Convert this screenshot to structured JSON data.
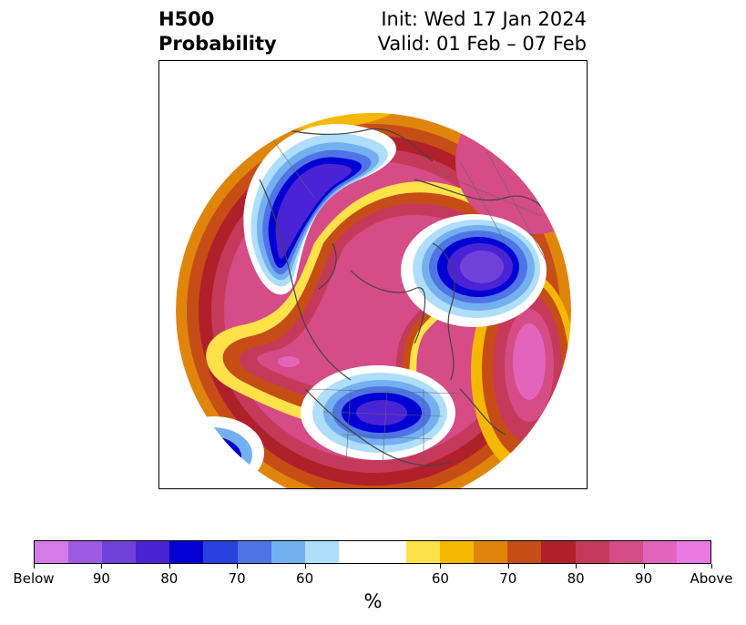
{
  "title": {
    "variable": "H500",
    "product": "Probability",
    "init": "Init: Wed 17 Jan 2024",
    "valid": "Valid: 01 Feb – 07 Feb"
  },
  "colorbar": {
    "colors": [
      "#d57ae9",
      "#9d5ae3",
      "#7040da",
      "#4a23d6",
      "#0000d2",
      "#2840de",
      "#4e74e5",
      "#74b0f0",
      "#aedefa",
      "#ffffff",
      "#ffffff",
      "#ffe24a",
      "#f5b800",
      "#e0850c",
      "#c64e16",
      "#b0202a",
      "#c53a5a",
      "#d54c86",
      "#e364bb",
      "#eb79e2"
    ],
    "tick_labels": [
      "Below",
      "90",
      "80",
      "70",
      "60",
      "60",
      "70",
      "80",
      "90",
      "Above"
    ],
    "unit": "%"
  },
  "map": {
    "projection": "north-polar-stereographic",
    "below_color_scale": [
      "#aedefa",
      "#74b0f0",
      "#4e74e5",
      "#2840de",
      "#0000d2",
      "#4a23d6",
      "#7040da"
    ],
    "above_color_scale": [
      "#ffe24a",
      "#f5b800",
      "#e0850c",
      "#c64e16",
      "#b0202a",
      "#c53a5a",
      "#d54c86",
      "#e364bb"
    ]
  }
}
